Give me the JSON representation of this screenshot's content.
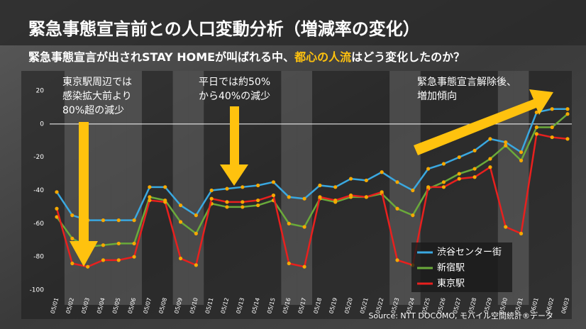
{
  "chart_data": {
    "type": "line",
    "title": "緊急事態宣言前との人口変動分析（増減率の変化）",
    "subtitle": [
      "緊急事態宣言が出されSTAY HOMEが叫ばれる中、",
      "都心の人流",
      "はどう変化したのか？"
    ],
    "categories": [
      "05/01",
      "05/02",
      "05/03",
      "05/04",
      "05/05",
      "05/06",
      "05/07",
      "05/08",
      "05/09",
      "05/10",
      "05/11",
      "05/12",
      "05/13",
      "05/14",
      "05/15",
      "05/16",
      "05/17",
      "05/18",
      "05/19",
      "05/20",
      "05/21",
      "05/22",
      "05/23",
      "05/24",
      "05/25",
      "05/26",
      "05/27",
      "05/28",
      "05/29",
      "05/30",
      "05/31",
      "06/01",
      "06/02",
      "06/03"
    ],
    "shaded": [
      "05/02",
      "05/03",
      "05/04",
      "05/05",
      "05/06",
      "05/09",
      "05/10",
      "05/16",
      "05/17",
      "05/23",
      "05/24",
      "05/30",
      "05/31"
    ],
    "series": [
      {
        "name": "渋谷センター街",
        "color": "#3aa8e0",
        "values": [
          -41,
          -55,
          -58,
          -58,
          -58,
          -58,
          -38,
          -38,
          -49,
          -55,
          -40,
          -39,
          -38,
          -37,
          -35,
          -44,
          -45,
          -37,
          -38,
          -33,
          -34,
          -29,
          -35,
          -40,
          -27,
          -24,
          -20,
          -16,
          -9,
          -11,
          -17,
          7,
          9,
          9
        ]
      },
      {
        "name": "新宿駅",
        "color": "#6aaa3a",
        "values": [
          -56,
          -69,
          -74,
          -73,
          -72,
          -72,
          -44,
          -46,
          -59,
          -66,
          -48,
          -50,
          -50,
          -49,
          -46,
          -60,
          -62,
          -45,
          -47,
          -44,
          -44,
          -42,
          -51,
          -55,
          -39,
          -35,
          -30,
          -27,
          -21,
          -13,
          -22,
          -2,
          -2,
          6
        ]
      },
      {
        "name": "東京駅",
        "color": "#e8201e",
        "values": [
          -51,
          -84,
          -86,
          -82,
          -82,
          -80,
          -46,
          -47,
          -81,
          -85,
          -45,
          -47,
          -47,
          -46,
          -43,
          -84,
          -86,
          -44,
          -46,
          -43,
          -44,
          -41,
          -82,
          -85,
          -38,
          -38,
          -33,
          -32,
          -26,
          -62,
          -66,
          -6,
          -8,
          -9
        ]
      }
    ],
    "marker_color": "#f5a800",
    "ylim": [
      -100,
      20
    ],
    "yticks": [
      -100,
      -80,
      -60,
      -40,
      -20,
      0,
      20
    ],
    "legend": "lower right",
    "annotations": [
      [
        "東京駅周辺では",
        "感染拡大前より",
        "80%超の減少"
      ],
      [
        "平日では約50%",
        "から40%の減少"
      ],
      [
        "緊急事態宣言解除後、",
        "増加傾向"
      ]
    ],
    "source": "Source: NTT DOCOMO, モバイル空間統計®データ"
  }
}
